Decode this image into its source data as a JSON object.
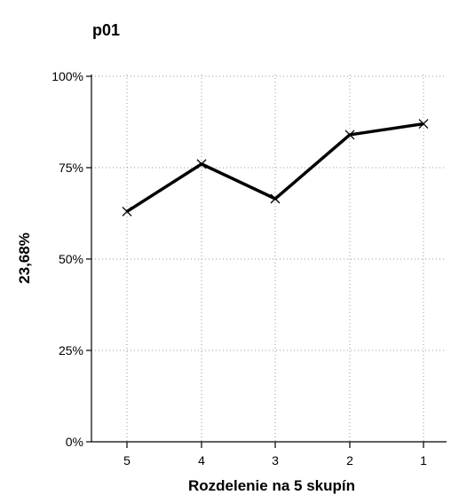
{
  "chart_data": {
    "type": "line",
    "title": "p01",
    "xlabel": "Rozdelenie na 5 skupín",
    "ylabel": "23,68%",
    "categories": [
      "5",
      "4",
      "3",
      "2",
      "1"
    ],
    "series": [
      {
        "values": [
          0.63,
          0.76,
          0.665,
          0.84,
          0.87
        ]
      }
    ],
    "ylim": [
      0,
      1
    ],
    "yticks": [
      {
        "value": 0,
        "label": "0%"
      },
      {
        "value": 0.25,
        "label": "25%"
      },
      {
        "value": 0.5,
        "label": "50%"
      },
      {
        "value": 0.75,
        "label": "75%"
      },
      {
        "value": 1,
        "label": "100%"
      }
    ],
    "grid": true,
    "marker": "x",
    "line_color": "#000000"
  }
}
